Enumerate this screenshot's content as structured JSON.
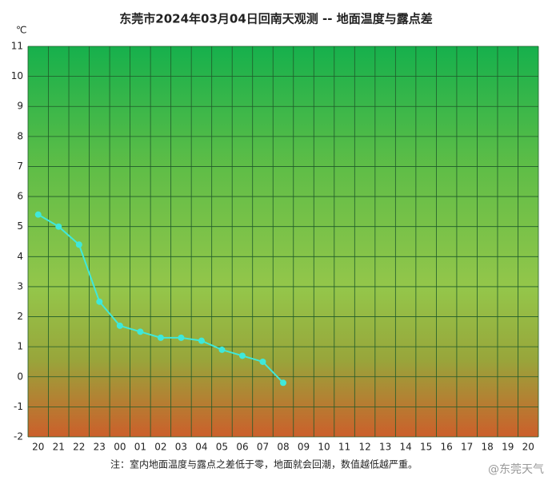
{
  "chart_data": {
    "type": "line",
    "title": "东莞市2024年03月04日回南天观测 -- 地面温度与露点差",
    "y_label": "℃",
    "note": "注：室内地面温度与露点之差低于零，地面就会回潮，数值越低越严重。",
    "watermark": "@东莞天气",
    "categories": [
      "20",
      "21",
      "22",
      "23",
      "00",
      "01",
      "02",
      "03",
      "04",
      "05",
      "06",
      "07",
      "08",
      "09",
      "10",
      "11",
      "12",
      "13",
      "14",
      "15",
      "16",
      "17",
      "18",
      "19",
      "20"
    ],
    "series": [
      {
        "name": "地面温度与露点差",
        "color": "#3fe8da",
        "values": [
          5.4,
          5.0,
          4.4,
          2.5,
          1.7,
          1.5,
          1.3,
          1.3,
          1.2,
          0.9,
          0.7,
          0.5,
          -0.2,
          null,
          null,
          null,
          null,
          null,
          null,
          null,
          null,
          null,
          null,
          null,
          null
        ]
      }
    ],
    "ylim": [
      -2,
      11
    ],
    "yticks": [
      -2,
      -1,
      0,
      1,
      2,
      3,
      4,
      5,
      6,
      7,
      8,
      9,
      10,
      11
    ],
    "grid": true
  }
}
